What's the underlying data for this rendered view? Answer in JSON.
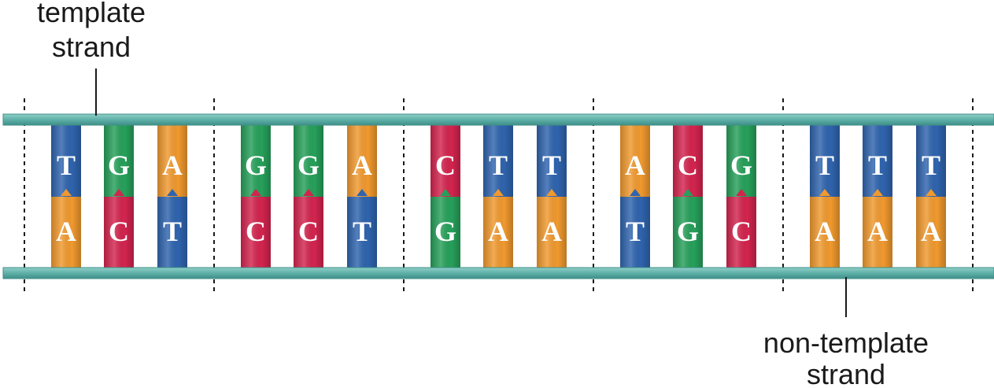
{
  "labels": {
    "template_line1": "template",
    "template_line2": "strand",
    "nontemplate_line1": "non-template",
    "nontemplate_line2": "strand"
  },
  "colors": {
    "backbone": "#5fb0a8",
    "backbone_edge": "#3f8f88",
    "T": "#2f64ae",
    "G": "#26a05a",
    "A": "#f0992e",
    "C": "#d3244e"
  },
  "codons": [
    {
      "template": [
        "T",
        "G",
        "A"
      ],
      "nontemplate": [
        "A",
        "C",
        "T"
      ]
    },
    {
      "template": [
        "G",
        "G",
        "A"
      ],
      "nontemplate": [
        "C",
        "C",
        "T"
      ]
    },
    {
      "template": [
        "C",
        "T",
        "T"
      ],
      "nontemplate": [
        "G",
        "A",
        "A"
      ]
    },
    {
      "template": [
        "A",
        "C",
        "G"
      ],
      "nontemplate": [
        "T",
        "G",
        "C"
      ]
    },
    {
      "template": [
        "T",
        "T",
        "T"
      ],
      "nontemplate": [
        "A",
        "A",
        "A"
      ]
    }
  ]
}
